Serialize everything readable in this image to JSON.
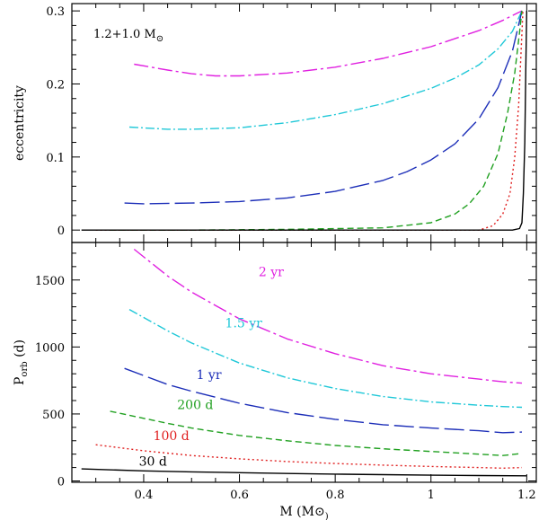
{
  "figure": {
    "annotation_main": "1.2+1.0 M",
    "annotation_sub": "⊙"
  },
  "chart_data": [
    {
      "type": "line",
      "panel": "top",
      "title": "",
      "xlabel": "",
      "ylabel": "eccentricity",
      "xlim": [
        0.25,
        1.22
      ],
      "ylim": [
        -0.017,
        0.31
      ],
      "xticks": [
        0.4,
        0.6,
        0.8,
        1.0,
        1.2
      ],
      "yticks": [
        0,
        0.1,
        0.2,
        0.3
      ],
      "ytick_labels": [
        "0",
        "0.1",
        "0.2",
        "0.3"
      ],
      "series": [
        {
          "name": "2 yr",
          "color": "#e020e0",
          "dash": "16 4 3 4",
          "x": [
            0.38,
            0.45,
            0.5,
            0.55,
            0.6,
            0.7,
            0.8,
            0.9,
            1.0,
            1.1,
            1.15,
            1.18,
            1.19
          ],
          "y": [
            0.227,
            0.219,
            0.214,
            0.211,
            0.211,
            0.215,
            0.223,
            0.235,
            0.251,
            0.273,
            0.287,
            0.297,
            0.3
          ]
        },
        {
          "name": "1.5 yr",
          "color": "#20c8d8",
          "dash": "10 3 2 3",
          "x": [
            0.37,
            0.45,
            0.5,
            0.6,
            0.7,
            0.8,
            0.9,
            1.0,
            1.05,
            1.1,
            1.14,
            1.17,
            1.19
          ],
          "y": [
            0.141,
            0.138,
            0.138,
            0.14,
            0.147,
            0.158,
            0.173,
            0.194,
            0.208,
            0.226,
            0.248,
            0.272,
            0.3
          ]
        },
        {
          "name": "1 yr",
          "color": "#1c2eb8",
          "dash": "22 6",
          "x": [
            0.36,
            0.4,
            0.5,
            0.6,
            0.7,
            0.8,
            0.9,
            0.95,
            1.0,
            1.05,
            1.1,
            1.14,
            1.17,
            1.19
          ],
          "y": [
            0.037,
            0.036,
            0.037,
            0.039,
            0.044,
            0.053,
            0.068,
            0.08,
            0.096,
            0.118,
            0.152,
            0.195,
            0.245,
            0.3
          ]
        },
        {
          "name": "200 d",
          "color": "#20a020",
          "dash": "7 4",
          "x": [
            0.33,
            0.5,
            0.7,
            0.9,
            1.0,
            1.05,
            1.08,
            1.11,
            1.14,
            1.16,
            1.175,
            1.185,
            1.19
          ],
          "y": [
            0.0,
            0.0,
            0.001,
            0.003,
            0.01,
            0.022,
            0.036,
            0.06,
            0.105,
            0.16,
            0.215,
            0.27,
            0.3
          ]
        },
        {
          "name": "100 d",
          "color": "#e02020",
          "dash": "2 3",
          "x": [
            0.3,
            0.6,
            0.9,
            1.1,
            1.13,
            1.15,
            1.165,
            1.175,
            1.183,
            1.188,
            1.192
          ],
          "y": [
            0.0,
            0.0,
            0.0,
            0.0,
            0.006,
            0.022,
            0.05,
            0.1,
            0.17,
            0.24,
            0.3
          ]
        },
        {
          "name": "30 d",
          "color": "#000000",
          "dash": "",
          "x": [
            0.27,
            0.6,
            1.0,
            1.17,
            1.185,
            1.19,
            1.193,
            1.196,
            1.198,
            1.2
          ],
          "y": [
            0.0,
            0.0,
            0.0,
            0.0,
            0.002,
            0.01,
            0.05,
            0.12,
            0.22,
            0.3
          ]
        }
      ]
    },
    {
      "type": "line",
      "panel": "bottom",
      "title": "",
      "xlabel": "M (M⊙)",
      "ylabel": "Porb (d)",
      "xlim": [
        0.25,
        1.22
      ],
      "ylim": [
        -10,
        1780
      ],
      "xticks": [
        0.4,
        0.6,
        0.8,
        1.0,
        1.2
      ],
      "xtick_labels": [
        "0.4",
        "0.6",
        "0.8",
        "1",
        "1.2"
      ],
      "yticks": [
        0,
        500,
        1000,
        1500
      ],
      "ytick_labels": [
        "0",
        "500",
        "1000",
        "1500"
      ],
      "series": [
        {
          "name": "2 yr",
          "color": "#e020e0",
          "dash": "16 4 3 4",
          "x": [
            0.38,
            0.45,
            0.5,
            0.6,
            0.7,
            0.8,
            0.9,
            1.0,
            1.1,
            1.15,
            1.19
          ],
          "y": [
            1730,
            1530,
            1410,
            1210,
            1060,
            950,
            860,
            800,
            760,
            740,
            730
          ]
        },
        {
          "name": "1.5 yr",
          "color": "#20c8d8",
          "dash": "10 3 2 3",
          "x": [
            0.37,
            0.45,
            0.5,
            0.6,
            0.7,
            0.8,
            0.9,
            1.0,
            1.1,
            1.15,
            1.19
          ],
          "y": [
            1280,
            1120,
            1030,
            880,
            770,
            690,
            630,
            590,
            565,
            555,
            550
          ]
        },
        {
          "name": "1 yr",
          "color": "#1c2eb8",
          "dash": "22 6",
          "x": [
            0.36,
            0.45,
            0.5,
            0.6,
            0.7,
            0.8,
            0.9,
            1.0,
            1.1,
            1.15,
            1.19
          ],
          "y": [
            840,
            720,
            670,
            580,
            510,
            460,
            420,
            395,
            375,
            360,
            365
          ]
        },
        {
          "name": "200 d",
          "color": "#20a020",
          "dash": "7 4",
          "x": [
            0.33,
            0.45,
            0.5,
            0.6,
            0.7,
            0.8,
            0.9,
            1.0,
            1.1,
            1.15,
            1.19
          ],
          "y": [
            520,
            430,
            395,
            340,
            300,
            265,
            240,
            220,
            200,
            190,
            205
          ]
        },
        {
          "name": "100 d",
          "color": "#e02020",
          "dash": "2 3",
          "x": [
            0.3,
            0.4,
            0.5,
            0.6,
            0.7,
            0.8,
            0.9,
            1.0,
            1.1,
            1.15,
            1.19
          ],
          "y": [
            270,
            225,
            190,
            165,
            145,
            130,
            118,
            108,
            100,
            95,
            100
          ]
        },
        {
          "name": "30 d",
          "color": "#000000",
          "dash": "",
          "x": [
            0.27,
            0.4,
            0.5,
            0.6,
            0.7,
            0.8,
            0.9,
            1.0,
            1.1,
            1.2
          ],
          "y": [
            90,
            75,
            68,
            62,
            56,
            51,
            47,
            43,
            40,
            38
          ]
        }
      ],
      "annotations": [
        {
          "text": "2 yr",
          "color": "#e020e0",
          "x": 0.64,
          "y": 1530
        },
        {
          "text": "1.5 yr",
          "color": "#20c8d8",
          "x": 0.57,
          "y": 1145
        },
        {
          "text": "1 yr",
          "color": "#1c2eb8",
          "x": 0.51,
          "y": 760
        },
        {
          "text": "200 d",
          "color": "#20a020",
          "x": 0.47,
          "y": 535
        },
        {
          "text": "100 d",
          "color": "#e02020",
          "x": 0.42,
          "y": 305
        },
        {
          "text": "30 d",
          "color": "#000000",
          "x": 0.39,
          "y": 115
        }
      ]
    }
  ]
}
